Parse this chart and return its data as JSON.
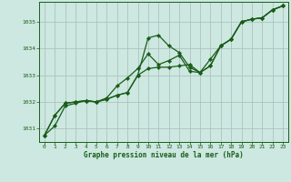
{
  "title": "Graphe pression niveau de la mer (hPa)",
  "background_color": "#cce8e0",
  "grid_color": "#aabbb8",
  "line_color": "#1a5c1a",
  "marker_color": "#1a5c1a",
  "xlim": [
    -0.5,
    23.5
  ],
  "ylim": [
    1030.5,
    1035.75
  ],
  "yticks": [
    1031,
    1032,
    1033,
    1034,
    1035
  ],
  "xticks": [
    0,
    1,
    2,
    3,
    4,
    5,
    6,
    7,
    8,
    9,
    10,
    11,
    12,
    13,
    14,
    15,
    16,
    17,
    18,
    19,
    20,
    21,
    22,
    23
  ],
  "series": [
    [
      1030.75,
      1031.1,
      1031.85,
      1031.95,
      1032.05,
      1032.0,
      1032.1,
      1032.25,
      1032.35,
      1033.0,
      1034.4,
      1034.5,
      1034.1,
      1033.85,
      1033.3,
      1033.1,
      1033.35,
      1034.1,
      1034.35,
      1035.0,
      1035.1,
      1035.15,
      1035.45,
      1035.6
    ],
    [
      1030.75,
      1031.5,
      1031.95,
      1032.0,
      1032.05,
      1032.0,
      1032.1,
      1032.25,
      1032.35,
      1033.0,
      1033.25,
      1033.3,
      1033.3,
      1033.35,
      1033.4,
      1033.1,
      1033.35,
      1034.1,
      1034.35,
      1035.0,
      1035.1,
      1035.15,
      1035.45,
      1035.6
    ],
    [
      1030.75,
      1031.5,
      1031.95,
      1032.0,
      1032.05,
      1032.0,
      1032.15,
      1032.6,
      1032.9,
      1033.25,
      1033.8,
      1033.4,
      1033.55,
      1033.75,
      1033.15,
      1033.1,
      1033.6,
      1034.1,
      1034.35,
      1035.0,
      1035.1,
      1035.15,
      1035.45,
      1035.6
    ]
  ]
}
